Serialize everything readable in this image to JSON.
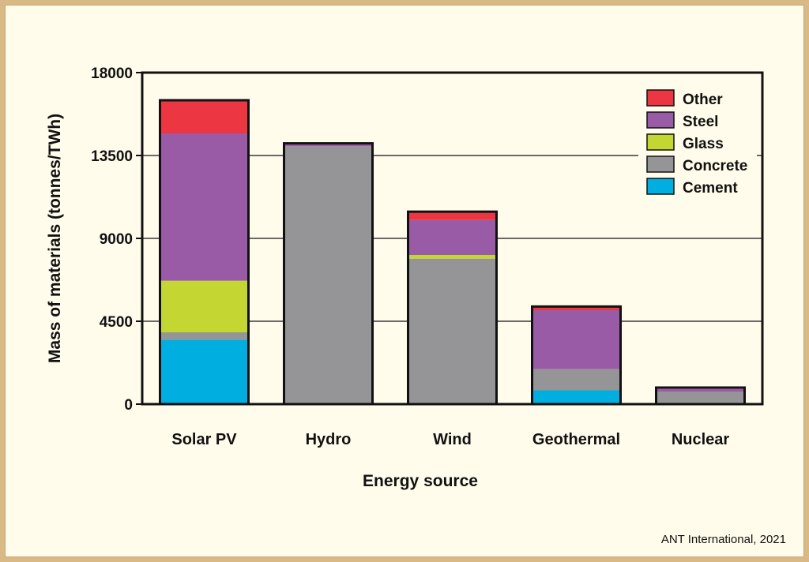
{
  "chart_data": {
    "type": "bar",
    "stacked": true,
    "title": "",
    "xlabel": "Energy source",
    "ylabel": "Mass of materials (tonnes/TWh)",
    "ylim": [
      0,
      18000
    ],
    "yticks": [
      0,
      4500,
      9000,
      13500,
      18000
    ],
    "ytick_labels": [
      "0",
      "4500",
      "9000",
      "13500",
      "18000"
    ],
    "grid": "horizontal",
    "legend_position": "top-right",
    "categories": [
      "Solar PV",
      "Hydro",
      "Wind",
      "Geothermal",
      "Nuclear"
    ],
    "series": [
      {
        "name": "Cement",
        "color": "#00aee0",
        "values": [
          3500,
          0,
          0,
          750,
          0
        ]
      },
      {
        "name": "Concrete",
        "color": "#959597",
        "values": [
          400,
          14000,
          7900,
          1150,
          670
        ]
      },
      {
        "name": "Glass",
        "color": "#c4d631",
        "values": [
          2800,
          0,
          200,
          0,
          0
        ]
      },
      {
        "name": "Steel",
        "color": "#995ba6",
        "values": [
          8000,
          160,
          1900,
          3200,
          160
        ]
      },
      {
        "name": "Other",
        "color": "#ec3641",
        "values": [
          1800,
          0,
          450,
          200,
          70
        ]
      }
    ],
    "legend_order": [
      "Other",
      "Steel",
      "Glass",
      "Concrete",
      "Cement"
    ],
    "credit": "ANT International, 2021"
  }
}
